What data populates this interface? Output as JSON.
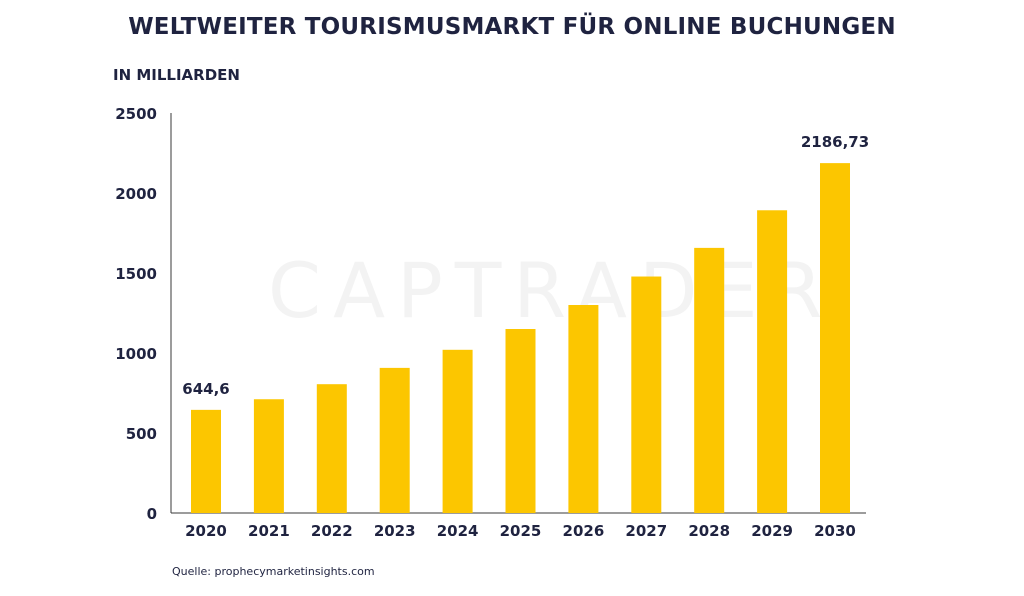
{
  "chart_data": {
    "type": "bar",
    "title": "WELTWEITER TOURISMUSMARKT FÜR ONLINE BUCHUNGEN",
    "unit_label": "IN MILLIARDEN",
    "categories": [
      "2020",
      "2021",
      "2022",
      "2023",
      "2024",
      "2025",
      "2026",
      "2027",
      "2028",
      "2029",
      "2030"
    ],
    "values": [
      644.6,
      711,
      805,
      907,
      1020,
      1150,
      1300,
      1478,
      1657,
      1892,
      2186.73
    ],
    "data_labels": [
      {
        "index": 0,
        "text": "644,6"
      },
      {
        "index": 10,
        "text": "2186,73"
      }
    ],
    "y_ticks": [
      0,
      500,
      1000,
      1500,
      2000,
      2500
    ],
    "ylim": [
      0,
      2500
    ],
    "bar_color": "#fcc600",
    "grid": false,
    "legend": "none"
  },
  "watermark": "CAPTRADER",
  "source": "Quelle: prophecymarketinsights.com"
}
